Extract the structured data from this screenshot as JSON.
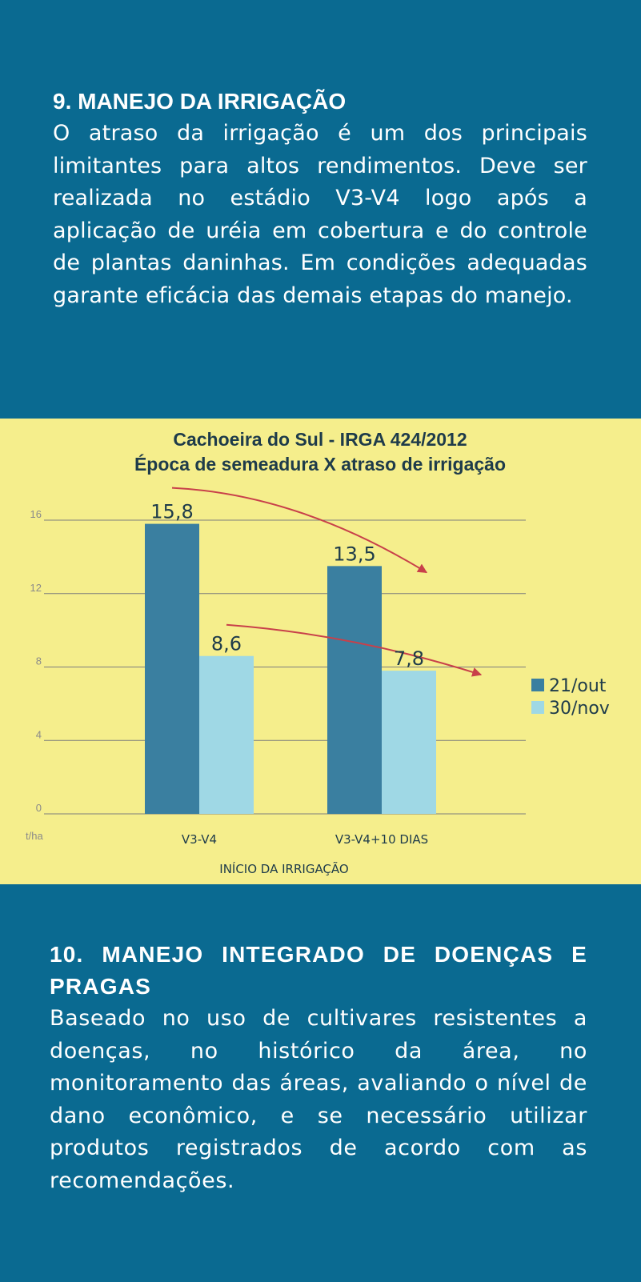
{
  "section1": {
    "title": "9. MANEJO DA IRRIGAÇÃO",
    "body": "O atraso da irrigação é um dos principais limitantes para altos rendimentos. Deve ser realizada no estádio V3-V4 logo após a aplicação de uréia em cobertura e do controle de plantas daninhas. Em condições adequadas garante eficácia das demais etapas do manejo."
  },
  "section2": {
    "title": "10. MANEJO INTEGRADO DE DOENÇAS E PRAGAS",
    "body": "Baseado no uso de cultivares resistentes a doenças, no histórico da área, no monitoramento das áreas, avaliando o nível de dano econômico, e se necessário utilizar produtos registrados de acordo com as recomendações."
  },
  "colors": {
    "background": "#0a6a91",
    "chart_band": "#f5ee8c",
    "series_dark": "#3a7fa0",
    "series_light": "#9fd8e5",
    "arrow": "#c8404a",
    "grid": "#7d7d7d"
  },
  "chart_data": {
    "type": "bar",
    "title": "Cachoeira do Sul - IRGA 424/2012",
    "subtitle": "Época de semeadura X atraso de irrigação",
    "xlabel": "INÍCIO DA IRRIGAÇÃO",
    "ylabel": "t/ha",
    "categories": [
      "V3-V4",
      "V3-V4+10 DIAS"
    ],
    "series": [
      {
        "name": "21/out",
        "values": [
          15.8,
          13.5
        ],
        "labels": [
          "15,8",
          "13,5"
        ],
        "color": "#3a7fa0"
      },
      {
        "name": "30/nov",
        "values": [
          8.6,
          7.8
        ],
        "labels": [
          "8,6",
          "7,8"
        ],
        "color": "#9fd8e5"
      }
    ],
    "ylim": [
      0,
      16
    ],
    "yticks": [
      0,
      4,
      8,
      12,
      16
    ],
    "grid": true,
    "legend_position": "right",
    "annotations": [
      {
        "type": "arrow",
        "series": "21/out",
        "from_category": "V3-V4",
        "to_category": "V3-V4+10 DIAS"
      },
      {
        "type": "arrow",
        "series": "30/nov",
        "from_category": "V3-V4",
        "to_category": "V3-V4+10 DIAS"
      }
    ]
  }
}
